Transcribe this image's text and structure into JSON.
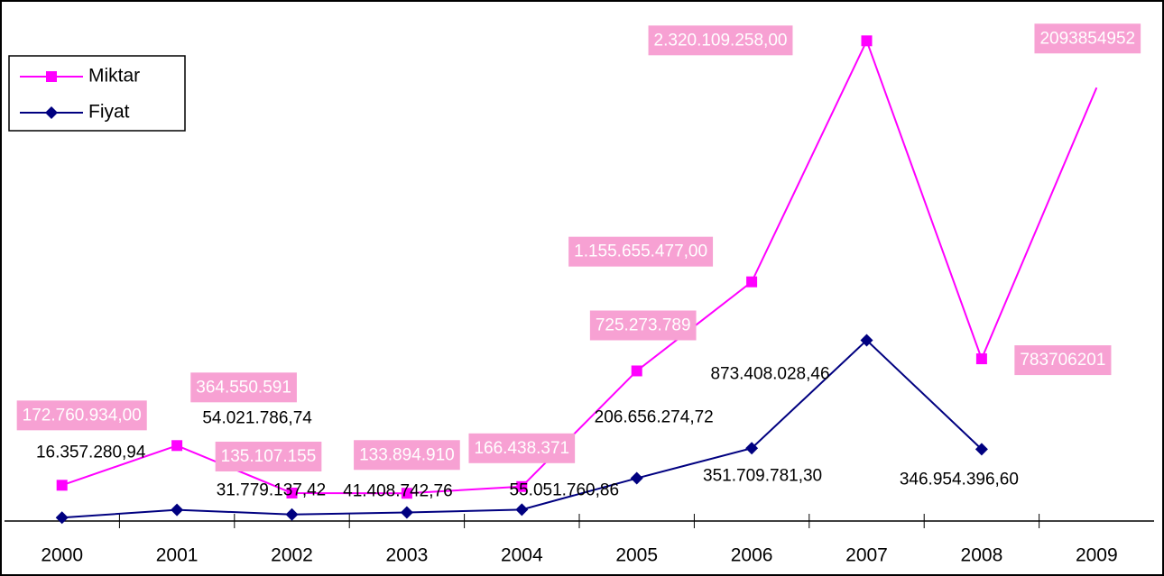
{
  "chart_data": {
    "type": "line",
    "categories": [
      "2000",
      "2001",
      "2002",
      "2003",
      "2004",
      "2005",
      "2006",
      "2007",
      "2008",
      "2009"
    ],
    "series": [
      {
        "name": "Miktar",
        "color": "#ff00ff",
        "marker": "square",
        "values": [
          172760934.0,
          364550591,
          135107155,
          133894910,
          166438371,
          725273789,
          1155655477.0,
          2320109258.0,
          783706201,
          2093854952
        ],
        "value_labels": [
          "172.760.934,00",
          "364.550.591",
          "135.107.155",
          "133.894.910",
          "166.438.371",
          "725.273.789",
          "1.155.655.477,00",
          "2.320.109.258,00",
          "783706201",
          "2093854952"
        ]
      },
      {
        "name": "Fiyat",
        "color": "#000080",
        "marker": "diamond",
        "values": [
          16357280.94,
          54021786.74,
          31779137.42,
          41408742.76,
          55051760.86,
          206656274.72,
          351709781.3,
          873408028.46,
          346954396.6,
          null
        ],
        "value_labels": [
          "16.357.280,94",
          "54.021.786,74",
          "31.779.137,42",
          "41.408.742,76",
          "55.051.760,86",
          "206.656.274,72",
          "351.709.781,30",
          "873.408.028,46",
          "346.954.396,60",
          null
        ]
      }
    ],
    "ylim": [
      0,
      2500000000
    ],
    "grid": false,
    "legend": "upper left"
  }
}
